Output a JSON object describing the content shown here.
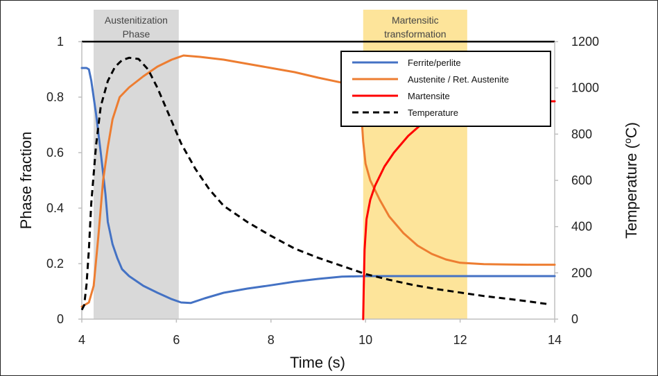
{
  "chart_data": {
    "type": "line",
    "title": "",
    "xlabel": "Time (s)",
    "ylabel": "Phase fraction",
    "y2label": "Temperature (",
    "y2label_deg": "o",
    "y2label_unit": "C)",
    "xlim": [
      4,
      14
    ],
    "ylim": [
      0,
      1
    ],
    "y2lim": [
      0,
      1200
    ],
    "x_ticks": [
      "4",
      "6",
      "8",
      "10",
      "12",
      "14"
    ],
    "y_ticks": [
      "0",
      "0.2",
      "0.4",
      "0.6",
      "0.8",
      "1"
    ],
    "y2_ticks": [
      "0",
      "200",
      "400",
      "600",
      "800",
      "1000",
      "1200"
    ],
    "grid": false,
    "legend_position": "top-right",
    "bands": [
      {
        "name": "austenitization",
        "label_lines": [
          "Austenitization",
          "Phase"
        ],
        "x_start": 4.25,
        "x_end": 6.05,
        "color": "#d9d9d9"
      },
      {
        "name": "martensitic",
        "label_lines": [
          "Martensitic",
          "transformation"
        ],
        "x_start": 9.95,
        "x_end": 12.15,
        "color": "#fde49a"
      }
    ],
    "series": [
      {
        "name": "Ferrite/perlite",
        "color": "#4472c4",
        "dash": "",
        "axis": "left",
        "points": [
          [
            4.0,
            0.905
          ],
          [
            4.1,
            0.905
          ],
          [
            4.15,
            0.9
          ],
          [
            4.2,
            0.86
          ],
          [
            4.3,
            0.74
          ],
          [
            4.4,
            0.6
          ],
          [
            4.5,
            0.45
          ],
          [
            4.55,
            0.35
          ],
          [
            4.65,
            0.27
          ],
          [
            4.75,
            0.22
          ],
          [
            4.85,
            0.18
          ],
          [
            5.0,
            0.155
          ],
          [
            5.3,
            0.12
          ],
          [
            5.6,
            0.095
          ],
          [
            5.9,
            0.072
          ],
          [
            6.1,
            0.06
          ],
          [
            6.3,
            0.058
          ],
          [
            6.6,
            0.075
          ],
          [
            7.0,
            0.095
          ],
          [
            7.5,
            0.11
          ],
          [
            8.0,
            0.122
          ],
          [
            8.5,
            0.135
          ],
          [
            9.0,
            0.145
          ],
          [
            9.5,
            0.153
          ],
          [
            10.0,
            0.155
          ],
          [
            11.0,
            0.155
          ],
          [
            12.0,
            0.155
          ],
          [
            13.0,
            0.155
          ],
          [
            14.0,
            0.155
          ]
        ]
      },
      {
        "name": "Austenite / Ret. Austenite",
        "color": "#ed7d31",
        "dash": "",
        "axis": "left",
        "points": [
          [
            4.0,
            0.045
          ],
          [
            4.15,
            0.06
          ],
          [
            4.25,
            0.12
          ],
          [
            4.35,
            0.3
          ],
          [
            4.45,
            0.5
          ],
          [
            4.55,
            0.62
          ],
          [
            4.65,
            0.72
          ],
          [
            4.8,
            0.8
          ],
          [
            5.0,
            0.835
          ],
          [
            5.3,
            0.875
          ],
          [
            5.6,
            0.91
          ],
          [
            5.9,
            0.935
          ],
          [
            6.15,
            0.95
          ],
          [
            6.5,
            0.945
          ],
          [
            7.0,
            0.935
          ],
          [
            7.5,
            0.92
          ],
          [
            8.0,
            0.905
          ],
          [
            8.5,
            0.89
          ],
          [
            9.0,
            0.87
          ],
          [
            9.5,
            0.852
          ],
          [
            9.88,
            0.84
          ],
          [
            9.92,
            0.72
          ],
          [
            9.95,
            0.64
          ],
          [
            10.0,
            0.56
          ],
          [
            10.1,
            0.5
          ],
          [
            10.3,
            0.43
          ],
          [
            10.5,
            0.37
          ],
          [
            10.8,
            0.31
          ],
          [
            11.1,
            0.265
          ],
          [
            11.4,
            0.235
          ],
          [
            11.7,
            0.215
          ],
          [
            12.0,
            0.203
          ],
          [
            12.5,
            0.198
          ],
          [
            13.0,
            0.197
          ],
          [
            13.5,
            0.196
          ],
          [
            14.0,
            0.196
          ]
        ]
      },
      {
        "name": "Martensite",
        "color": "#ff0000",
        "dash": "",
        "axis": "left",
        "points": [
          [
            9.95,
            0.0
          ],
          [
            9.96,
            0.1
          ],
          [
            9.98,
            0.25
          ],
          [
            10.02,
            0.36
          ],
          [
            10.1,
            0.43
          ],
          [
            10.2,
            0.48
          ],
          [
            10.4,
            0.55
          ],
          [
            10.6,
            0.6
          ],
          [
            10.9,
            0.66
          ],
          [
            11.2,
            0.705
          ],
          [
            11.5,
            0.74
          ],
          [
            11.8,
            0.765
          ],
          [
            12.1,
            0.78
          ],
          [
            12.4,
            0.788
          ],
          [
            13.0,
            0.785
          ],
          [
            13.5,
            0.785
          ],
          [
            14.0,
            0.785
          ]
        ]
      },
      {
        "name": "Temperature",
        "color": "#000000",
        "dash": "9,6",
        "axis": "right",
        "points": [
          [
            4.0,
            40
          ],
          [
            4.05,
            60
          ],
          [
            4.1,
            150
          ],
          [
            4.15,
            300
          ],
          [
            4.2,
            500
          ],
          [
            4.3,
            750
          ],
          [
            4.4,
            920
          ],
          [
            4.55,
            1030
          ],
          [
            4.7,
            1090
          ],
          [
            4.85,
            1120
          ],
          [
            5.0,
            1130
          ],
          [
            5.2,
            1125
          ],
          [
            5.4,
            1080
          ],
          [
            5.6,
            1000
          ],
          [
            5.85,
            880
          ],
          [
            6.1,
            760
          ],
          [
            6.4,
            650
          ],
          [
            6.7,
            560
          ],
          [
            7.0,
            490
          ],
          [
            7.5,
            420
          ],
          [
            8.0,
            360
          ],
          [
            8.5,
            305
          ],
          [
            9.0,
            265
          ],
          [
            9.5,
            230
          ],
          [
            10.0,
            195
          ],
          [
            10.5,
            170
          ],
          [
            11.0,
            148
          ],
          [
            11.5,
            130
          ],
          [
            12.0,
            115
          ],
          [
            12.5,
            100
          ],
          [
            13.0,
            88
          ],
          [
            13.5,
            75
          ],
          [
            13.85,
            65
          ]
        ]
      }
    ]
  }
}
